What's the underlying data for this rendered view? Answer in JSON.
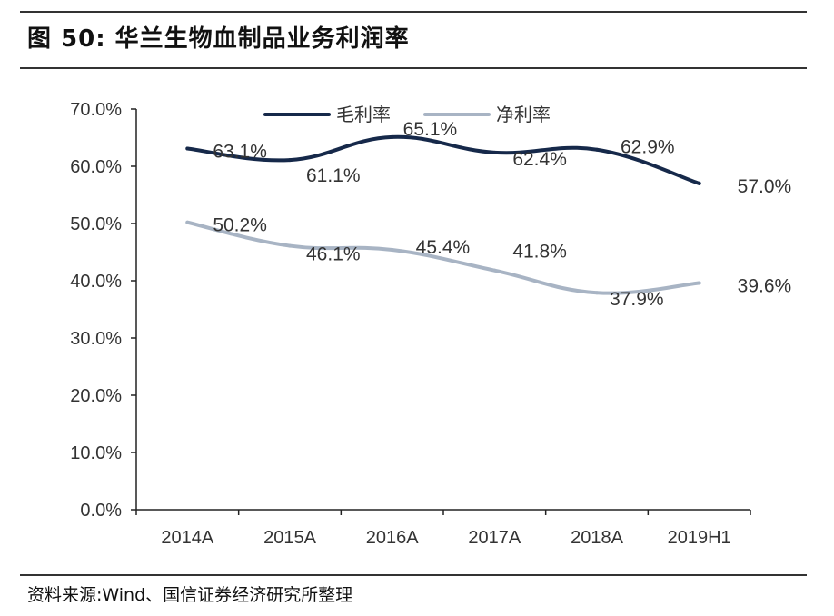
{
  "header": {
    "figure_title": "图 50:  华兰生物血制品业务利润率"
  },
  "footer": {
    "source": "资料来源:Wind、国信证券经济研究所整理"
  },
  "colors": {
    "gross_margin": "#16294a",
    "net_margin": "#a8b4c4",
    "axis": "#222222",
    "text": "#333333"
  },
  "chart_data": {
    "type": "line",
    "title": "",
    "xlabel": "",
    "ylabel": "",
    "categories": [
      "2014A",
      "2015A",
      "2016A",
      "2017A",
      "2018A",
      "2019H1"
    ],
    "series": [
      {
        "name": "毛利率",
        "values": [
          63.1,
          61.1,
          65.1,
          62.4,
          62.9,
          57.0
        ],
        "labels": [
          "63.1%",
          "61.1%",
          "65.1%",
          "62.4%",
          "62.9%",
          "57.0%"
        ]
      },
      {
        "name": "净利率",
        "values": [
          50.2,
          46.1,
          45.4,
          41.8,
          37.9,
          39.6
        ],
        "labels": [
          "50.2%",
          "46.1%",
          "45.4%",
          "41.8%",
          "37.9%",
          "39.6%"
        ]
      }
    ],
    "ylim": [
      0,
      70
    ],
    "yticks": [
      0,
      10,
      20,
      30,
      40,
      50,
      60,
      70
    ],
    "ytick_labels": [
      "0.0%",
      "10.0%",
      "20.0%",
      "30.0%",
      "40.0%",
      "50.0%",
      "60.0%",
      "70.0%"
    ],
    "grid": false,
    "legend_position": "top",
    "smooth": true
  }
}
